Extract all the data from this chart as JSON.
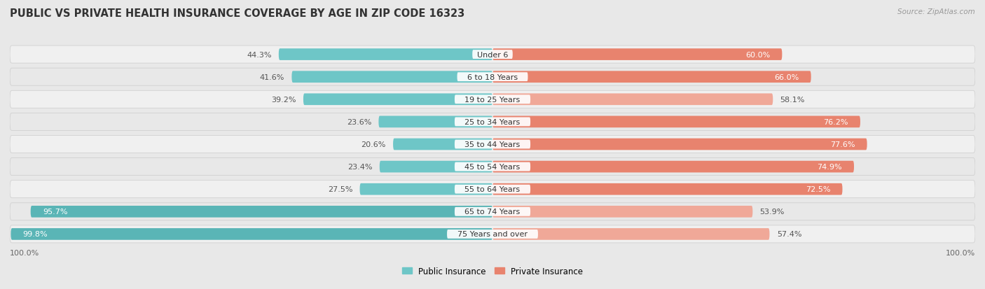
{
  "title": "PUBLIC VS PRIVATE HEALTH INSURANCE COVERAGE BY AGE IN ZIP CODE 16323",
  "source": "Source: ZipAtlas.com",
  "categories": [
    "Under 6",
    "6 to 18 Years",
    "19 to 25 Years",
    "25 to 34 Years",
    "35 to 44 Years",
    "45 to 54 Years",
    "55 to 64 Years",
    "65 to 74 Years",
    "75 Years and over"
  ],
  "public_values": [
    44.3,
    41.6,
    39.2,
    23.6,
    20.6,
    23.4,
    27.5,
    95.7,
    99.8
  ],
  "private_values": [
    60.0,
    66.0,
    58.1,
    76.2,
    77.6,
    74.9,
    72.5,
    53.9,
    57.4
  ],
  "public_colors": [
    "#6ec6c7",
    "#6ec6c7",
    "#6ec6c7",
    "#6ec6c7",
    "#6ec6c7",
    "#6ec6c7",
    "#6ec6c7",
    "#5ab5b6",
    "#5ab5b6"
  ],
  "private_colors": [
    "#e8836e",
    "#e8836e",
    "#f0a898",
    "#e8836e",
    "#e8836e",
    "#e8836e",
    "#e8836e",
    "#f0a898",
    "#f0a898"
  ],
  "row_bg_colors": [
    "#f0f0f0",
    "#e8e8e8",
    "#f0f0f0",
    "#e8e8e8",
    "#f0f0f0",
    "#e8e8e8",
    "#f0f0f0",
    "#e8e8e8",
    "#f0f0f0"
  ],
  "bg_color": "#e8e8e8",
  "max_value": 100.0,
  "title_fontsize": 10.5,
  "label_fontsize": 8.0,
  "value_fontsize": 8.0,
  "footer_fontsize": 8.0
}
